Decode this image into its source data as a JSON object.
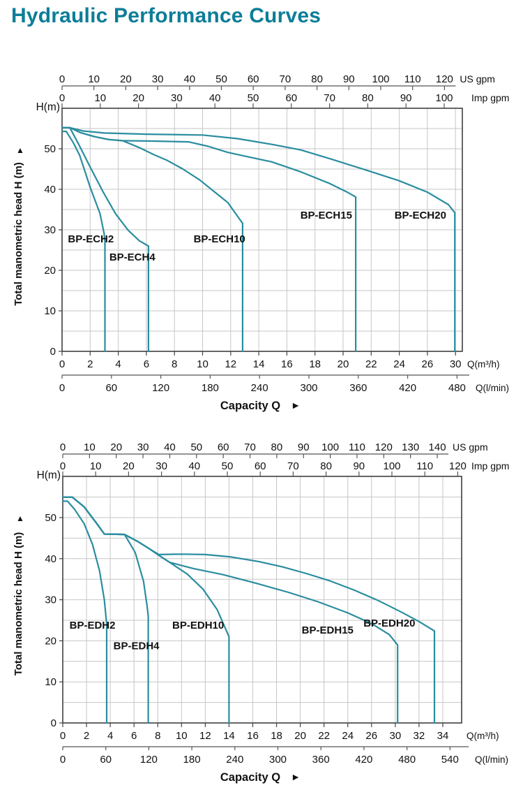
{
  "title": "Hydraulic Performance Curves",
  "colors": {
    "accent": "#0d7d98",
    "curve": "#2a8d9f",
    "grid": "#c6c6c6",
    "axis": "#3f3f3f"
  },
  "chart_data": [
    {
      "type": "line",
      "title": "BP-ECH series hydraulic performance",
      "xlabel": "Capacity Q",
      "capacity_label": "Capacity Q",
      "capacity_arrow": "►",
      "ylabel": "Total manometric head H (m)",
      "y_axis_corner_label": "H(m)",
      "y_axis_arrow": "▲",
      "ylim": [
        0,
        60
      ],
      "y_tick_labels": [
        "0",
        "10",
        "20",
        "30",
        "40",
        "50"
      ],
      "grid": true,
      "x_scales": {
        "us_gpm": {
          "unit": "US gpm",
          "labels": [
            "0",
            "10",
            "20",
            "30",
            "40",
            "50",
            "60",
            "70",
            "80",
            "90",
            "100",
            "110",
            "120"
          ]
        },
        "imp_gpm": {
          "unit": "Imp gpm",
          "labels": [
            "0",
            "10",
            "20",
            "30",
            "40",
            "50",
            "60",
            "70",
            "80",
            "90",
            "100"
          ]
        },
        "m3h": {
          "unit": "Q(m³/h)",
          "labels": [
            "0",
            "2",
            "4",
            "6",
            "8",
            "10",
            "12",
            "14",
            "16",
            "18",
            "20",
            "22",
            "24",
            "26",
            "30"
          ]
        },
        "lmin": {
          "unit": "Q(l/min)",
          "labels": [
            "0",
            "60",
            "120",
            "180",
            "240",
            "300",
            "360",
            "420",
            "480"
          ]
        }
      },
      "series": [
        {
          "name": "BP-ECH2",
          "label_q": 2.05,
          "label_h": 26.9,
          "points": [
            [
              0,
              54.3
            ],
            [
              0.3,
              54.3
            ],
            [
              0.8,
              51.5
            ],
            [
              1.25,
              48.4
            ],
            [
              2,
              40.5
            ],
            [
              2.7,
              34
            ],
            [
              3,
              29
            ],
            [
              3.05,
              27
            ],
            [
              3.05,
              0
            ]
          ]
        },
        {
          "name": "BP-ECH4",
          "label_q": 5.0,
          "label_h": 22.4,
          "points": [
            [
              0,
              55.2
            ],
            [
              0.55,
              55.2
            ],
            [
              1.2,
              51
            ],
            [
              2,
              45.5
            ],
            [
              2.9,
              39.5
            ],
            [
              3.8,
              34
            ],
            [
              4.7,
              29.9
            ],
            [
              5.5,
              27.3
            ],
            [
              6,
              26.3
            ],
            [
              6.15,
              26
            ],
            [
              6.15,
              0
            ]
          ]
        },
        {
          "name": "BP-ECH10",
          "label_q": 11.2,
          "label_h": 26.9,
          "points": [
            [
              0,
              55.2
            ],
            [
              0.55,
              55.2
            ],
            [
              1.3,
              54
            ],
            [
              2.3,
              53
            ],
            [
              3.3,
              52.3
            ],
            [
              4.3,
              52
            ],
            [
              5.5,
              50.3
            ],
            [
              6.5,
              48.6
            ],
            [
              7.5,
              47.1
            ],
            [
              8.6,
              45
            ],
            [
              9.8,
              42.3
            ],
            [
              10.8,
              39.5
            ],
            [
              11.8,
              36.7
            ],
            [
              12.6,
              32.8
            ],
            [
              12.85,
              31.6
            ],
            [
              12.85,
              0
            ]
          ]
        },
        {
          "name": "BP-ECH15",
          "label_q": 18.8,
          "label_h": 32.8,
          "points": [
            [
              0,
              55.2
            ],
            [
              0.55,
              55.2
            ],
            [
              1.3,
              54
            ],
            [
              2.3,
              53
            ],
            [
              3.3,
              52.3
            ],
            [
              4.3,
              52
            ],
            [
              6.5,
              51.9
            ],
            [
              9,
              51.7
            ],
            [
              10.4,
              50.6
            ],
            [
              11.8,
              49.1
            ],
            [
              13.4,
              47.9
            ],
            [
              14.9,
              46.8
            ],
            [
              17,
              44.3
            ],
            [
              19,
              41.5
            ],
            [
              20.3,
              39.3
            ],
            [
              20.9,
              38.1
            ],
            [
              20.9,
              0
            ]
          ]
        },
        {
          "name": "BP-ECH20",
          "label_q": 25.5,
          "label_h": 32.8,
          "points": [
            [
              0,
              55.2
            ],
            [
              0.55,
              55.2
            ],
            [
              1.5,
              54.4
            ],
            [
              3,
              53.9
            ],
            [
              6,
              53.6
            ],
            [
              10,
              53.4
            ],
            [
              12.5,
              52.5
            ],
            [
              14.9,
              51.1
            ],
            [
              17,
              49.7
            ],
            [
              19.2,
              47.4
            ],
            [
              21.5,
              44.9
            ],
            [
              24,
              42.1
            ],
            [
              26,
              39.3
            ],
            [
              27.5,
              36.2
            ],
            [
              27.95,
              34.2
            ],
            [
              27.95,
              0
            ]
          ]
        }
      ]
    },
    {
      "type": "line",
      "title": "BP-EDH series hydraulic performance",
      "xlabel": "Capacity Q",
      "capacity_label": "Capacity Q",
      "capacity_arrow": "►",
      "ylabel": "Total manometric head H (m)",
      "y_axis_corner_label": "H(m)",
      "y_axis_arrow": "▲",
      "ylim": [
        0,
        60
      ],
      "y_tick_labels": [
        "0",
        "10",
        "20",
        "30",
        "40",
        "50"
      ],
      "grid": true,
      "x_scales": {
        "us_gpm": {
          "unit": "US gpm",
          "labels": [
            "0",
            "10",
            "20",
            "30",
            "40",
            "50",
            "60",
            "70",
            "80",
            "90",
            "100",
            "110",
            "120",
            "130",
            "140"
          ]
        },
        "imp_gpm": {
          "unit": "Imp gpm",
          "labels": [
            "0",
            "10",
            "20",
            "30",
            "40",
            "50",
            "60",
            "70",
            "80",
            "90",
            "100",
            "110",
            "120"
          ]
        },
        "m3h": {
          "unit": "Q(m³/h)",
          "labels": [
            "0",
            "2",
            "4",
            "6",
            "8",
            "10",
            "12",
            "14",
            "16",
            "18",
            "20",
            "22",
            "24",
            "26",
            "30",
            "32",
            "34"
          ]
        },
        "lmin": {
          "unit": "Q(l/min)",
          "labels": [
            "0",
            "60",
            "120",
            "180",
            "240",
            "300",
            "360",
            "420",
            "480",
            "540"
          ]
        }
      },
      "series": [
        {
          "name": "BP-EDH2",
          "label_q": 2.5,
          "label_h": 23.0,
          "points": [
            [
              0,
              54
            ],
            [
              0.4,
              54
            ],
            [
              1,
              52
            ],
            [
              1.8,
              48.5
            ],
            [
              2.5,
              43.5
            ],
            [
              3.1,
              37
            ],
            [
              3.5,
              30
            ],
            [
              3.68,
              24.5
            ],
            [
              3.7,
              24
            ],
            [
              3.7,
              0
            ]
          ]
        },
        {
          "name": "BP-EDH4",
          "label_q": 6.2,
          "label_h": 17.9,
          "points": [
            [
              0,
              55
            ],
            [
              0.8,
              55
            ],
            [
              1.8,
              52.6
            ],
            [
              2.8,
              48.8
            ],
            [
              3.5,
              46
            ],
            [
              5.2,
              45.9
            ],
            [
              6.1,
              41.5
            ],
            [
              6.8,
              34.5
            ],
            [
              7.1,
              28.5
            ],
            [
              7.2,
              26
            ],
            [
              7.2,
              0
            ]
          ]
        },
        {
          "name": "BP-EDH10",
          "label_q": 11.4,
          "label_h": 23.0,
          "points": [
            [
              0,
              55
            ],
            [
              0.8,
              55
            ],
            [
              1.8,
              52.6
            ],
            [
              2.8,
              48.8
            ],
            [
              3.5,
              46
            ],
            [
              5.2,
              45.9
            ],
            [
              6.3,
              44.2
            ],
            [
              7.3,
              42.4
            ],
            [
              8.1,
              40.8
            ],
            [
              9,
              39.1
            ],
            [
              10.5,
              36.2
            ],
            [
              11.8,
              32.6
            ],
            [
              13,
              27.6
            ],
            [
              13.7,
              23
            ],
            [
              14,
              21
            ],
            [
              14,
              0
            ]
          ]
        },
        {
          "name": "BP-EDH15",
          "label_q": 22.3,
          "label_h": 21.8,
          "points": [
            [
              0,
              55
            ],
            [
              0.8,
              55
            ],
            [
              1.8,
              52.6
            ],
            [
              2.8,
              48.8
            ],
            [
              3.5,
              46
            ],
            [
              5.2,
              45.9
            ],
            [
              6.3,
              44.2
            ],
            [
              7.3,
              42.4
            ],
            [
              8.1,
              40.8
            ],
            [
              9,
              39.1
            ],
            [
              11,
              37.6
            ],
            [
              13.5,
              36.1
            ],
            [
              16.3,
              34
            ],
            [
              19,
              31.8
            ],
            [
              21.5,
              29.5
            ],
            [
              24,
              26.8
            ],
            [
              26,
              24.2
            ],
            [
              27.5,
              21.5
            ],
            [
              28.2,
              19
            ],
            [
              28.2,
              0
            ]
          ]
        },
        {
          "name": "BP-EDH20",
          "label_q": 27.5,
          "label_h": 23.5,
          "points": [
            [
              0,
              55
            ],
            [
              0.8,
              55
            ],
            [
              1.8,
              52.6
            ],
            [
              2.8,
              48.8
            ],
            [
              3.5,
              46
            ],
            [
              5.2,
              45.9
            ],
            [
              6.3,
              44.2
            ],
            [
              7.3,
              42.4
            ],
            [
              8.1,
              41
            ],
            [
              10,
              41.1
            ],
            [
              12,
              41
            ],
            [
              14.2,
              40.4
            ],
            [
              16.5,
              39.3
            ],
            [
              18.5,
              38
            ],
            [
              20.5,
              36.4
            ],
            [
              22.5,
              34.6
            ],
            [
              24.5,
              32.4
            ],
            [
              26.5,
              29.9
            ],
            [
              28.5,
              27
            ],
            [
              30,
              24.7
            ],
            [
              31.3,
              22.4
            ],
            [
              31.3,
              0
            ]
          ]
        }
      ]
    }
  ]
}
